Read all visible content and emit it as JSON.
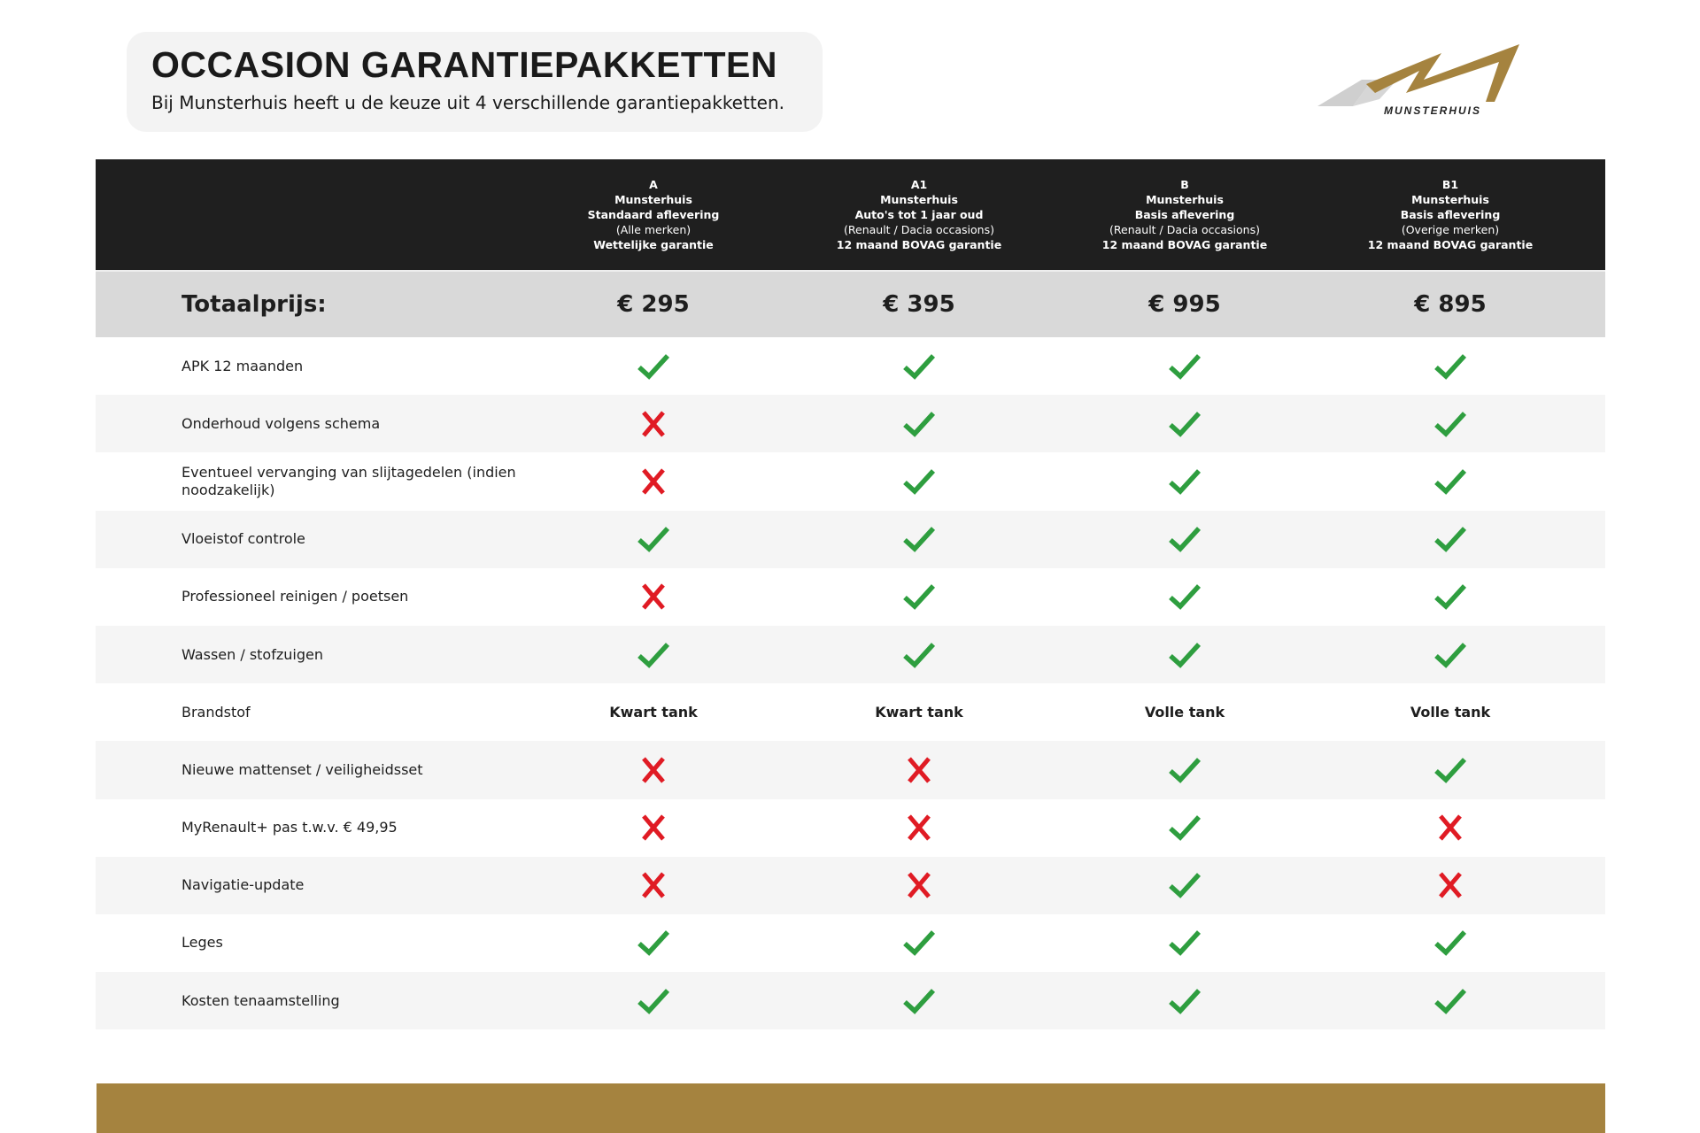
{
  "header": {
    "title": "OCCASION GARANTIEPAKKETTEN",
    "subtitle": "Bij Munsterhuis heeft u de keuze uit 4 verschillende garantiepakketten.",
    "logo_text": "MUNSTERHUIS"
  },
  "colors": {
    "gold": "#a5833f",
    "check": "#2e9e3f",
    "cross": "#e01b24",
    "header_bg": "#1f1f1f"
  },
  "packages": [
    {
      "code": "A",
      "brand": "Munsterhuis",
      "type": "Standaard aflevering",
      "scope": "(Alle merken)",
      "warranty": "Wettelijke garantie",
      "price": "€ 295"
    },
    {
      "code": "A1",
      "brand": "Munsterhuis",
      "type": "Auto's tot 1 jaar oud",
      "scope": "(Renault / Dacia occasions)",
      "warranty": "12 maand BOVAG garantie",
      "price": "€ 395"
    },
    {
      "code": "B",
      "brand": "Munsterhuis",
      "type": "Basis aflevering",
      "scope": "(Renault / Dacia occasions)",
      "warranty": "12 maand BOVAG garantie",
      "price": "€ 995"
    },
    {
      "code": "B1",
      "brand": "Munsterhuis",
      "type": "Basis aflevering",
      "scope": "(Overige merken)",
      "warranty": "12 maand BOVAG garantie",
      "price": "€ 895"
    }
  ],
  "total_label": "Totaalprijs:",
  "rows": [
    {
      "label": "APK 12 maanden",
      "values": [
        "check",
        "check",
        "check",
        "check"
      ]
    },
    {
      "label": "Onderhoud volgens schema",
      "values": [
        "cross",
        "check",
        "check",
        "check"
      ]
    },
    {
      "label": "Eventueel vervanging van slijtagedelen (indien noodzakelijk)",
      "values": [
        "cross",
        "check",
        "check",
        "check"
      ]
    },
    {
      "label": "Vloeistof controle",
      "values": [
        "check",
        "check",
        "check",
        "check"
      ]
    },
    {
      "label": "Professioneel reinigen  / poetsen",
      "values": [
        "cross",
        "check",
        "check",
        "check"
      ]
    },
    {
      "label": "Wassen / stofzuigen",
      "values": [
        "check",
        "check",
        "check",
        "check"
      ]
    },
    {
      "label": "Brandstof",
      "values": [
        "Kwart tank",
        "Kwart tank",
        "Volle  tank",
        "Volle  tank"
      ]
    },
    {
      "label": "Nieuwe mattenset / veiligheidsset",
      "values": [
        "cross",
        "cross",
        "check",
        "check"
      ]
    },
    {
      "label": "MyRenault+ pas t.w.v. € 49,95",
      "values": [
        "cross",
        "cross",
        "check",
        "cross"
      ]
    },
    {
      "label": "Navigatie-update",
      "values": [
        "cross",
        "cross",
        "check",
        "cross"
      ]
    },
    {
      "label": "Leges",
      "values": [
        "check",
        "check",
        "check",
        "check"
      ]
    },
    {
      "label": "Kosten tenaamstelling",
      "values": [
        "check",
        "check",
        "check",
        "check"
      ]
    }
  ]
}
